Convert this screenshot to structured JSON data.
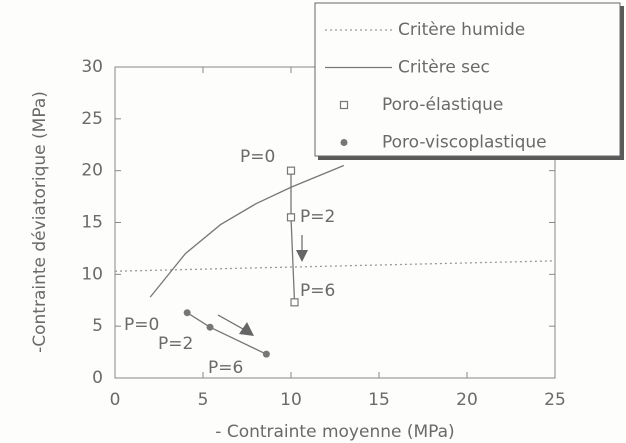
{
  "chart_data": {
    "type": "line",
    "x_label": "- Contrainte moyenne (MPa)",
    "y_label": "-Contrainte déviatorique (MPa)",
    "xlim": [
      0,
      25
    ],
    "xticks": [
      0,
      5,
      10,
      15,
      20,
      25
    ],
    "ylim": [
      0,
      30
    ],
    "yticks": [
      0,
      5,
      10,
      15,
      20,
      25,
      30
    ],
    "grid": false,
    "legend_position": "upper right",
    "series": [
      {
        "name": "Critère  humide",
        "color": "#9a9a9a",
        "linestyle": "dotted",
        "marker": "none",
        "x": [
          0,
          25
        ],
        "values": [
          10.3,
          11.3
        ]
      },
      {
        "name": "Critère  sec",
        "color": "#777777",
        "linestyle": "solid",
        "marker": "none",
        "x": [
          2,
          4,
          6,
          8,
          10,
          12,
          13
        ],
        "values": [
          7.8,
          12,
          14.8,
          16.8,
          18.4,
          19.8,
          20.5
        ]
      },
      {
        "name": "Poro-élastique",
        "color": "#777777",
        "linestyle": "solid",
        "marker": "square",
        "x": [
          10,
          10,
          10.2
        ],
        "values": [
          20,
          15.5,
          7.3
        ]
      },
      {
        "name": "Poro-viscoplastique",
        "color": "#777777",
        "linestyle": "solid",
        "marker": "dot",
        "x": [
          4.1,
          5.4,
          8.6
        ],
        "values": [
          6.3,
          4.9,
          2.3
        ]
      }
    ],
    "annotations": [
      "P=0",
      "P=2",
      "P=6",
      "P=0",
      "P=2",
      "P=6"
    ]
  }
}
